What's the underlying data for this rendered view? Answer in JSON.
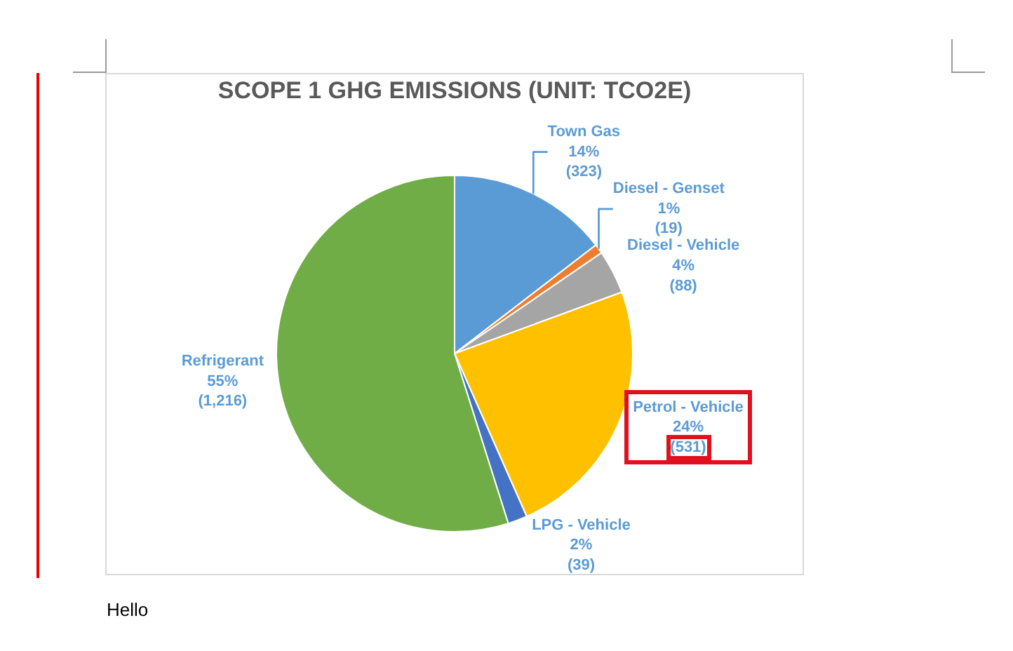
{
  "chart_data": {
    "type": "pie",
    "title": "SCOPE 1 GHG EMISSIONS (UNIT: TCO2E)",
    "categories": [
      "Town Gas",
      "Diesel - Genset",
      "Diesel - Vehicle",
      "Petrol - Vehicle",
      "LPG - Vehicle",
      "Refrigerant"
    ],
    "values": [
      323,
      19,
      88,
      531,
      39,
      1216
    ],
    "colors": [
      "#5b9bd5",
      "#ed7d31",
      "#a5a5a5",
      "#ffc000",
      "#4472c4",
      "#70ad47"
    ],
    "value_labels": [
      "14%\n(323)",
      "1%\n(19)",
      "4%\n(88)",
      "24%\n(531)",
      "2%\n(39)",
      "55%\n(1,216)"
    ],
    "annotations": [
      "Hello"
    ]
  }
}
